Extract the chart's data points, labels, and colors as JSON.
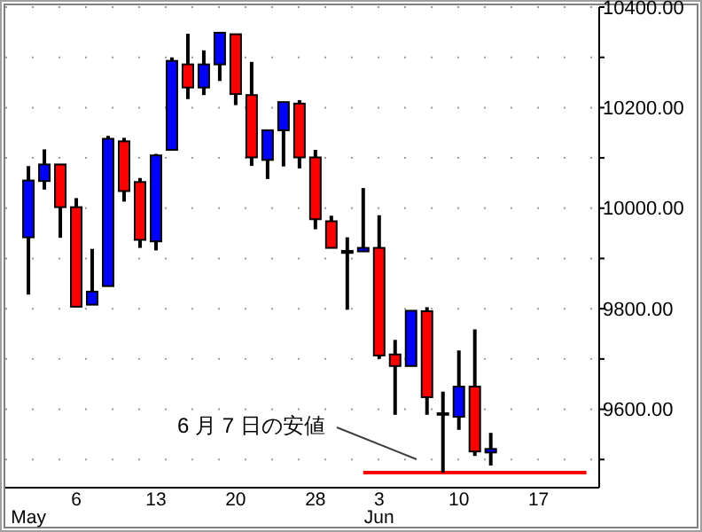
{
  "chart_data": {
    "type": "candlestick",
    "categories": [
      "\nMay",
      null,
      null,
      "6",
      null,
      null,
      null,
      null,
      "13",
      null,
      null,
      null,
      null,
      "20",
      null,
      null,
      null,
      null,
      "28",
      null,
      null,
      null,
      "3\nJun",
      null,
      null,
      null,
      null,
      "10",
      null,
      null,
      null,
      null,
      "17",
      null,
      null,
      null
    ],
    "ohlc": [
      [
        9942,
        10084,
        9828,
        10055
      ],
      [
        10054,
        10117,
        10037,
        10087
      ],
      [
        10087,
        10087,
        9941,
        10002
      ],
      [
        10002,
        10020,
        9804,
        9804
      ],
      [
        9808,
        9919,
        9808,
        9834
      ],
      [
        9845,
        10144,
        9845,
        10138
      ],
      [
        10133,
        10140,
        10013,
        10034
      ],
      [
        10052,
        10060,
        9921,
        9937
      ],
      [
        9934,
        10108,
        9916,
        10105
      ],
      [
        10116,
        10300,
        10116,
        10293
      ],
      [
        10286,
        10347,
        10217,
        10240
      ],
      [
        10240,
        10314,
        10225,
        10286
      ],
      [
        10286,
        10349,
        10253,
        10349
      ],
      [
        10346,
        10346,
        10205,
        10227
      ],
      [
        10225,
        10291,
        10084,
        10101
      ],
      [
        10096,
        10155,
        10058,
        10155
      ],
      [
        10155,
        10211,
        10083,
        10211
      ],
      [
        10208,
        10215,
        10079,
        10101
      ],
      [
        10101,
        10116,
        9958,
        9978
      ],
      [
        9974,
        9985,
        9921,
        9921
      ],
      [
        9915,
        9942,
        9798,
        9911
      ],
      [
        9914,
        10040,
        9914,
        9921
      ],
      [
        9921,
        9986,
        9700,
        9707
      ],
      [
        9709,
        9738,
        9589,
        9686
      ],
      [
        9686,
        9796,
        9686,
        9796
      ],
      [
        9795,
        9803,
        9589,
        9624
      ],
      [
        9592,
        9635,
        9474,
        9589
      ],
      [
        9585,
        9717,
        9559,
        9645
      ],
      [
        9645,
        9759,
        9507,
        9516
      ],
      [
        9514,
        9553,
        9488,
        9521
      ],
      null,
      null,
      null,
      null,
      null,
      null
    ],
    "colors": [
      "#0000ff",
      "#0000ff",
      "#ff0000",
      "#ff0000",
      "#0000ff",
      "#0000ff",
      "#ff0000",
      "#ff0000",
      "#0000ff",
      "#0000ff",
      "#ff0000",
      "#0000ff",
      "#0000ff",
      "#ff0000",
      "#ff0000",
      "#0000ff",
      "#0000ff",
      "#ff0000",
      "#ff0000",
      "#ff0000",
      "#000000",
      "#0000ff",
      "#ff0000",
      "#ff0000",
      "#0000ff",
      "#ff0000",
      "#000000",
      "#0000ff",
      "#ff0000",
      "#0000ff",
      null,
      null,
      null,
      null,
      null,
      null
    ],
    "series": [
      {
        "type": "line",
        "color": "#ff0000",
        "values": [
          null,
          null,
          null,
          null,
          null,
          null,
          null,
          null,
          null,
          null,
          null,
          null,
          null,
          null,
          null,
          null,
          null,
          null,
          null,
          null,
          null,
          9474,
          9474,
          9474,
          9474,
          9474,
          9474,
          9474,
          9474,
          9474,
          9474,
          9474,
          9474,
          9474,
          9474,
          9474
        ]
      }
    ],
    "ylim": [
      9444,
      10400
    ],
    "yticks": [
      {
        "value": 9500,
        "label": null
      },
      {
        "value": 9600,
        "label": "9600.00"
      },
      {
        "value": 9700,
        "label": null
      },
      {
        "value": 9800,
        "label": "9800.00"
      },
      {
        "value": 9900,
        "label": null
      },
      {
        "value": 10000,
        "label": "10000.00"
      },
      {
        "value": 10100,
        "label": null
      },
      {
        "value": 10200,
        "label": "10200.00"
      },
      {
        "value": 10300,
        "label": null
      },
      {
        "value": 10400,
        "label": "10400.00"
      }
    ],
    "grid": "y",
    "annotations": [
      "6 月 7 日の安値"
    ]
  }
}
